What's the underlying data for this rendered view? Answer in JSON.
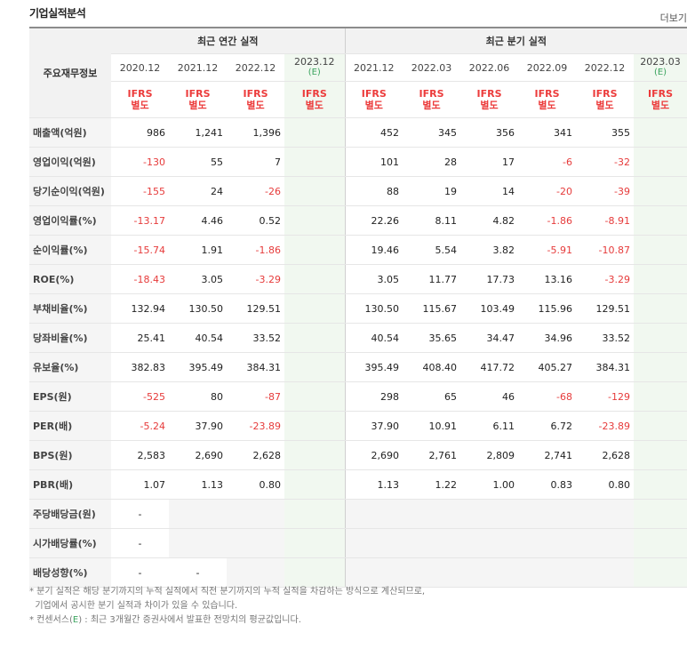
{
  "title": "기업실적분석",
  "more": "더보기",
  "header": {
    "row_label": "주요재무정보",
    "annual_group": "최근 연간 실적",
    "quarter_group": "최근 분기 실적",
    "annual_periods": [
      "2020.12",
      "2021.12",
      "2022.12",
      "2023.12"
    ],
    "quarter_periods": [
      "2021.12",
      "2022.03",
      "2022.06",
      "2022.09",
      "2022.12",
      "2023.03"
    ],
    "estimate_mark": "(E)",
    "ifrs_line1": "IFRS",
    "ifrs_line2": "별도"
  },
  "rows": [
    {
      "label": "매출액(억원)",
      "annual": [
        "986",
        "1,241",
        "1,396",
        ""
      ],
      "quarter": [
        "452",
        "345",
        "356",
        "341",
        "355",
        ""
      ]
    },
    {
      "label": "영업이익(억원)",
      "annual": [
        "-130",
        "55",
        "7",
        ""
      ],
      "quarter": [
        "101",
        "28",
        "17",
        "-6",
        "-32",
        ""
      ]
    },
    {
      "label": "당기순이익(억원)",
      "annual": [
        "-155",
        "24",
        "-26",
        ""
      ],
      "quarter": [
        "88",
        "19",
        "14",
        "-20",
        "-39",
        ""
      ]
    },
    {
      "label": "영업이익률(%)",
      "annual": [
        "-13.17",
        "4.46",
        "0.52",
        ""
      ],
      "quarter": [
        "22.26",
        "8.11",
        "4.82",
        "-1.86",
        "-8.91",
        ""
      ]
    },
    {
      "label": "순이익률(%)",
      "annual": [
        "-15.74",
        "1.91",
        "-1.86",
        ""
      ],
      "quarter": [
        "19.46",
        "5.54",
        "3.82",
        "-5.91",
        "-10.87",
        ""
      ]
    },
    {
      "label": "ROE(%)",
      "annual": [
        "-18.43",
        "3.05",
        "-3.29",
        ""
      ],
      "quarter": [
        "3.05",
        "11.77",
        "17.73",
        "13.16",
        "-3.29",
        ""
      ]
    },
    {
      "label": "부채비율(%)",
      "annual": [
        "132.94",
        "130.50",
        "129.51",
        ""
      ],
      "quarter": [
        "130.50",
        "115.67",
        "103.49",
        "115.96",
        "129.51",
        ""
      ]
    },
    {
      "label": "당좌비율(%)",
      "annual": [
        "25.41",
        "40.54",
        "33.52",
        ""
      ],
      "quarter": [
        "40.54",
        "35.65",
        "34.47",
        "34.96",
        "33.52",
        ""
      ]
    },
    {
      "label": "유보율(%)",
      "annual": [
        "382.83",
        "395.49",
        "384.31",
        ""
      ],
      "quarter": [
        "395.49",
        "408.40",
        "417.72",
        "405.27",
        "384.31",
        ""
      ]
    },
    {
      "label": "EPS(원)",
      "annual": [
        "-525",
        "80",
        "-87",
        ""
      ],
      "quarter": [
        "298",
        "65",
        "46",
        "-68",
        "-129",
        ""
      ]
    },
    {
      "label": "PER(배)",
      "annual": [
        "-5.24",
        "37.90",
        "-23.89",
        ""
      ],
      "quarter": [
        "37.90",
        "10.91",
        "6.11",
        "6.72",
        "-23.89",
        ""
      ]
    },
    {
      "label": "BPS(원)",
      "annual": [
        "2,583",
        "2,690",
        "2,628",
        ""
      ],
      "quarter": [
        "2,690",
        "2,761",
        "2,809",
        "2,741",
        "2,628",
        ""
      ]
    },
    {
      "label": "PBR(배)",
      "annual": [
        "1.07",
        "1.13",
        "0.80",
        ""
      ],
      "quarter": [
        "1.13",
        "1.22",
        "1.00",
        "0.83",
        "0.80",
        ""
      ]
    },
    {
      "label": "주당배당금(원)",
      "annual": [
        "-",
        "",
        "",
        ""
      ],
      "quarter": [
        "",
        "",
        "",
        "",
        "",
        ""
      ]
    },
    {
      "label": "시가배당률(%)",
      "annual": [
        "-",
        "",
        "",
        ""
      ],
      "quarter": [
        "",
        "",
        "",
        "",
        "",
        ""
      ]
    },
    {
      "label": "배당성향(%)",
      "annual": [
        "-",
        "-",
        "",
        ""
      ],
      "quarter": [
        "",
        "",
        "",
        "",
        "",
        ""
      ]
    }
  ],
  "notes": {
    "line1": "* 분기 실적은 해당 분기까지의 누적 실적에서 직전 분기까지의 누적 실적을 차감하는 방식으로 계산되므로,",
    "line2": "  기업에서 공시한 분기 실적과 차이가 있을 수 있습니다.",
    "line3_pre": "* 컨센서스(",
    "line3_e": "E",
    "line3_post": ") : 최근 3개월간 증권사에서 발표한 전망치의 평균값입니다."
  },
  "colors": {
    "negative": "#e63b3b",
    "estimate": "#3aa35d",
    "estimate_bg": "#f1f8f0"
  }
}
